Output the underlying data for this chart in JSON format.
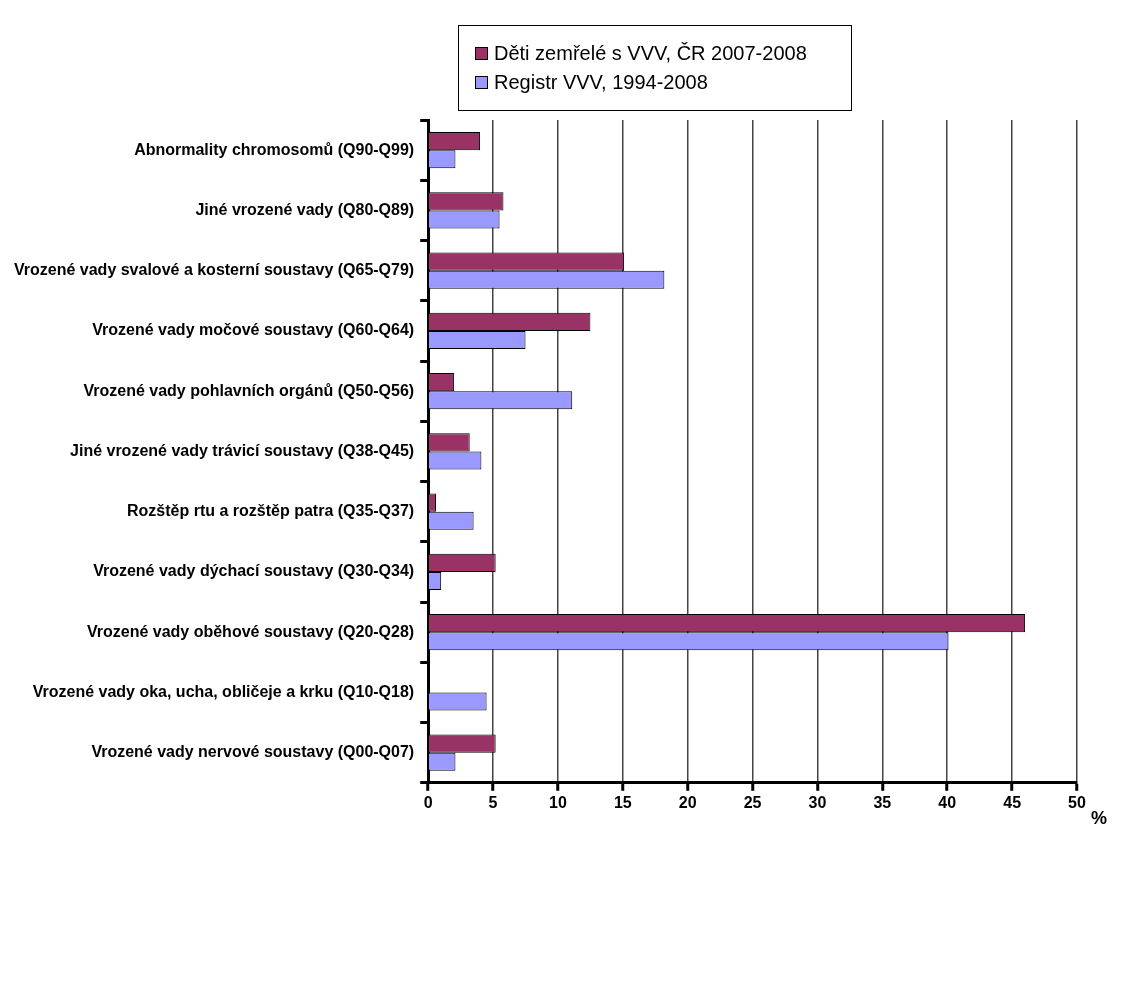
{
  "chart_data": {
    "type": "bar",
    "orientation": "horizontal",
    "xlabel": "%",
    "categories": [
      "Abnormality chromosomů (Q90-Q99)",
      "Jiné vrozené vady (Q80-Q89)",
      "Vrozené vady svalové a kosterní soustavy (Q65-Q79)",
      "Vrozené vady močové soustavy (Q60-Q64)",
      "Vrozené vady pohlavních orgánů (Q50-Q56)",
      "Jiné vrozené vady trávicí soustavy (Q38-Q45)",
      "Rozštěp rtu a rozštěp patra (Q35-Q37)",
      "Vrozené vady dýchací soustavy (Q30-Q34)",
      "Vrozené vady oběhové soustavy (Q20-Q28)",
      "Vrozené vady oka, ucha, obličeje a krku (Q10-Q18)",
      "Vrozené vady nervové soustavy (Q00-Q07)"
    ],
    "series": [
      {
        "name": "Děti zemřelé s VVV, ČR 2007-2008",
        "color": "#993366",
        "values": [
          4.0,
          5.8,
          15.1,
          12.5,
          2.0,
          3.2,
          0.6,
          5.2,
          46.0,
          null,
          5.2
        ]
      },
      {
        "name": "Registr VVV, 1994-2008",
        "color": "#9999ff",
        "values": [
          2.1,
          5.5,
          18.2,
          7.5,
          11.1,
          4.1,
          3.5,
          1.0,
          40.1,
          4.5,
          2.1
        ]
      }
    ],
    "xlim": [
      0,
      50
    ],
    "xticks": [
      0,
      5,
      10,
      15,
      20,
      25,
      30,
      35,
      40,
      45,
      50
    ],
    "grid": "x",
    "legend": "top"
  }
}
